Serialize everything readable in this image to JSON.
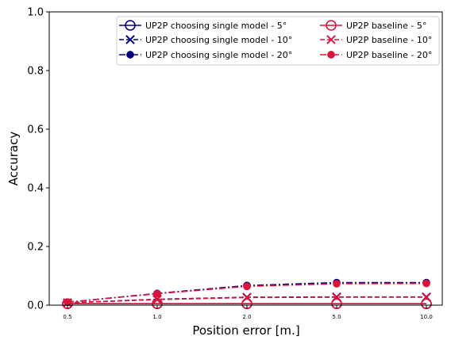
{
  "chart_data": {
    "type": "line",
    "title": "",
    "xlabel": "Position error [m.]",
    "ylabel": "Accuracy",
    "categories": [
      "0.5",
      "1.0",
      "2.0",
      "5.0",
      "10.0"
    ],
    "ylim": [
      0.0,
      1.0
    ],
    "yticks": [
      "0.0",
      "0.2",
      "0.4",
      "0.6",
      "0.8",
      "1.0"
    ],
    "grid": false,
    "legend_position": "top-right",
    "legend_columns": 2,
    "series": [
      {
        "name": "UP2P choosing single model - 5°",
        "color": "#000080",
        "marker": "open-circle",
        "linestyle": "solid",
        "values": [
          0.005,
          0.005,
          0.005,
          0.005,
          0.005
        ]
      },
      {
        "name": "UP2P choosing single model - 10°",
        "color": "#000080",
        "marker": "x",
        "linestyle": "dashed",
        "values": [
          0.008,
          0.02,
          0.027,
          0.028,
          0.028
        ]
      },
      {
        "name": "UP2P choosing single model - 20°",
        "color": "#000080",
        "marker": "filled-circle",
        "linestyle": "dashdot",
        "values": [
          0.01,
          0.04,
          0.067,
          0.077,
          0.077
        ]
      },
      {
        "name": "UP2P baseline - 5°",
        "color": "#dc143c",
        "marker": "open-circle",
        "linestyle": "solid",
        "values": [
          0.005,
          0.005,
          0.005,
          0.005,
          0.005
        ]
      },
      {
        "name": "UP2P baseline - 10°",
        "color": "#dc143c",
        "marker": "x",
        "linestyle": "dashed",
        "values": [
          0.008,
          0.019,
          0.026,
          0.027,
          0.027
        ]
      },
      {
        "name": "UP2P baseline - 20°",
        "color": "#dc143c",
        "marker": "filled-circle",
        "linestyle": "dashdot",
        "values": [
          0.01,
          0.039,
          0.064,
          0.073,
          0.074
        ]
      }
    ]
  }
}
